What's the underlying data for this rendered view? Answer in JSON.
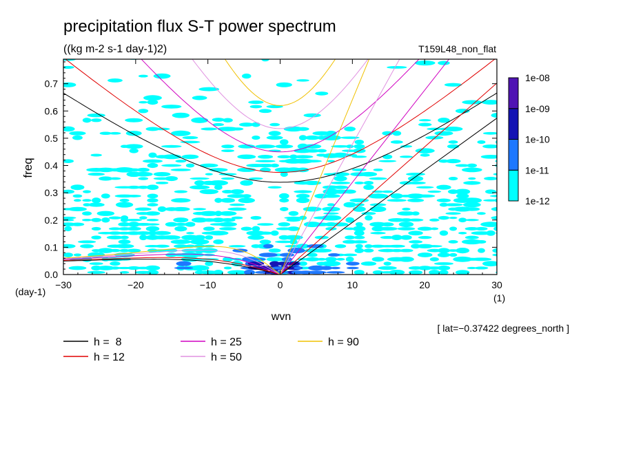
{
  "chart_data": {
    "type": "heatmap",
    "title": "precipitation flux S-T power spectrum",
    "subtitle": "((kg m-2 s-1 day-1)2)",
    "dataset_label": "T159L48_non_flat",
    "xlabel": "wvn",
    "ylabel": "freq",
    "x_unit": "(1)",
    "y_unit": "(day-1)",
    "xlim": [
      -30,
      30
    ],
    "ylim": [
      0,
      0.79
    ],
    "x_ticks": [
      -30,
      -20,
      -10,
      0,
      10,
      20,
      30
    ],
    "x_tick_labels": [
      "−30",
      "−20",
      "−10",
      "0",
      "10",
      "20",
      "30"
    ],
    "y_ticks": [
      0,
      0.1,
      0.2,
      0.3,
      0.4,
      0.5,
      0.6,
      0.7
    ],
    "y_tick_labels": [
      "0.0",
      "0.1",
      "0.2",
      "0.3",
      "0.4",
      "0.5",
      "0.6",
      "0.7"
    ],
    "annotation": "[ lat=−0.37422 degrees_north ]",
    "colorbar": {
      "levels": [
        "1e-12",
        "1e-11",
        "1e-10",
        "1e-09",
        "1e-08"
      ],
      "colors": [
        "#00ffff",
        "#1e78ff",
        "#1414b4",
        "#5014b4"
      ]
    },
    "contour_regions": [
      {
        "level": 0,
        "x_range": [
          -30,
          30
        ],
        "y_range": [
          0.0,
          0.2
        ],
        "density": 0.45
      },
      {
        "level": 0,
        "x_range": [
          -30,
          30
        ],
        "y_range": [
          0.2,
          0.43
        ],
        "density": 0.33
      },
      {
        "level": 0,
        "x_range": [
          -30,
          30
        ],
        "y_range": [
          0.43,
          0.56
        ],
        "density": 0.18
      },
      {
        "level": 0,
        "x_range": [
          -30,
          30
        ],
        "y_range": [
          0.56,
          0.79
        ],
        "density": 0.05
      },
      {
        "level": 1,
        "x_range": [
          -14,
          10
        ],
        "y_range": [
          0.0,
          0.1
        ],
        "density": 0.15
      },
      {
        "level": 2,
        "x_range": [
          -4,
          2
        ],
        "y_range": [
          0.0,
          0.04
        ],
        "density": 0.85
      },
      {
        "level": 1,
        "x_range": [
          -6,
          10
        ],
        "y_range": [
          0.0,
          0.03
        ],
        "density": 0.35
      }
    ],
    "series": [
      {
        "name": "h =  8",
        "equivalent_depth": 8,
        "color": "#000000"
      },
      {
        "name": "h = 12",
        "equivalent_depth": 12,
        "color": "#e00000"
      },
      {
        "name": "h = 25",
        "equivalent_depth": 25,
        "color": "#d000c0"
      },
      {
        "name": "h = 50",
        "equivalent_depth": 50,
        "color": "#e090e0"
      },
      {
        "name": "h = 90",
        "equivalent_depth": 90,
        "color": "#f0c000"
      }
    ],
    "grid": false,
    "legend_position": "bottom-left"
  }
}
